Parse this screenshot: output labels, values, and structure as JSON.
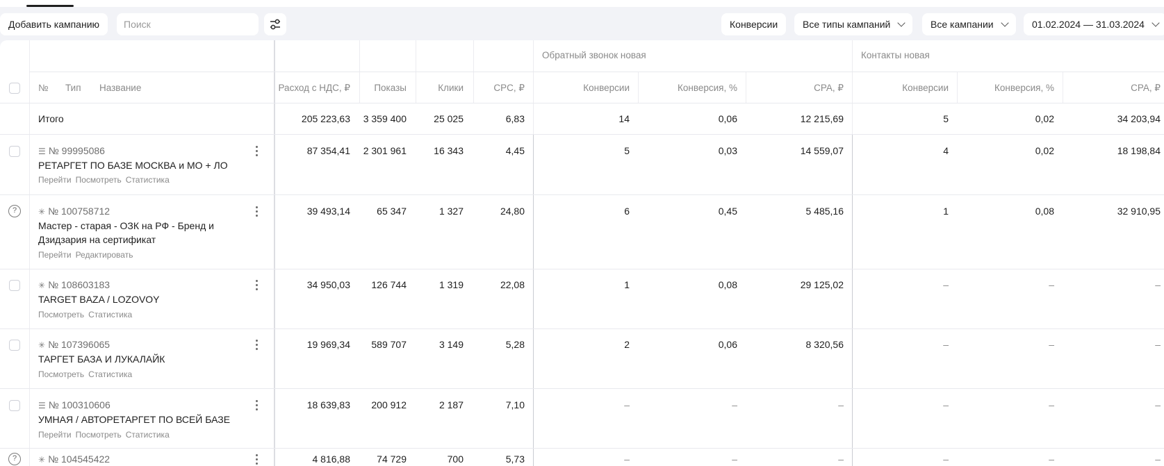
{
  "toolbar": {
    "add_campaign": "Добавить кампанию",
    "search_placeholder": "Поиск",
    "conversions": "Конверсии",
    "campaign_types": "Все типы кампаний",
    "campaigns": "Все кампании",
    "date_range": "01.02.2024 — 31.03.2024"
  },
  "groups": {
    "callback": "Обратный звонок новая",
    "contacts": "Контакты новая"
  },
  "headers": {
    "no": "№",
    "type": "Тип",
    "name": "Название",
    "spend": "Расход с НДС, ₽",
    "impressions": "Показы",
    "clicks": "Клики",
    "cpc": "CPC, ₽",
    "conv1": "Конверсии",
    "convrate1": "Конверсия, %",
    "cpa1": "CPA, ₽",
    "conv2": "Конверсии",
    "convrate2": "Конверсия, %",
    "cpa2": "CPA, ₽"
  },
  "total": {
    "label": "Итого",
    "spend": "205 223,63",
    "impressions": "3 359 400",
    "clicks": "25 025",
    "cpc": "6,83",
    "conv1": "14",
    "convrate1": "0,06",
    "cpa1": "12 215,69",
    "conv2": "5",
    "convrate2": "0,02",
    "cpa2": "34 203,94"
  },
  "rows": [
    {
      "type_icon": "text-ad-icon",
      "id": "№ 99995086",
      "name1": "РЕТАРГЕТ ПО БАЗЕ МОСКВА и МО + ЛО",
      "name2": "",
      "links": [
        "Перейти",
        "Посмотреть",
        "Статистика"
      ],
      "spend": "87 354,41",
      "impressions": "2 301 961",
      "clicks": "16 343",
      "cpc": "4,45",
      "conv1": "5",
      "convrate1": "0,03",
      "cpa1": "14 559,07",
      "conv2": "4",
      "convrate2": "0,02",
      "cpa2": "18 198,84"
    },
    {
      "type_icon": "master-icon",
      "id": "№ 100758712",
      "name1": "Мастер - старая - ОЗК на РФ - Бренд и",
      "name2": "Дзидзария на сертификат",
      "links": [
        "Перейти",
        "Редактировать"
      ],
      "spend": "39 493,14",
      "impressions": "65 347",
      "clicks": "1 327",
      "cpc": "24,80",
      "conv1": "6",
      "convrate1": "0,45",
      "cpa1": "5 485,16",
      "conv2": "1",
      "convrate2": "0,08",
      "cpa2": "32 910,95"
    },
    {
      "type_icon": "master-icon",
      "id": "№ 108603183",
      "name1": "TARGET BAZA / LOZOVOY",
      "name2": "",
      "links": [
        "Посмотреть",
        "Статистика"
      ],
      "spend": "34 950,03",
      "impressions": "126 744",
      "clicks": "1 319",
      "cpc": "22,08",
      "conv1": "1",
      "convrate1": "0,08",
      "cpa1": "29 125,02",
      "conv2": "–",
      "convrate2": "–",
      "cpa2": "–"
    },
    {
      "type_icon": "master-icon",
      "id": "№ 107396065",
      "name1": "ТАРГЕТ БАЗА И ЛУКАЛАЙК",
      "name2": "",
      "links": [
        "Посмотреть",
        "Статистика"
      ],
      "spend": "19 969,34",
      "impressions": "589 707",
      "clicks": "3 149",
      "cpc": "5,28",
      "conv1": "2",
      "convrate1": "0,06",
      "cpa1": "8 320,56",
      "conv2": "–",
      "convrate2": "–",
      "cpa2": "–"
    },
    {
      "type_icon": "text-ad-icon",
      "id": "№ 100310606",
      "name1": "УМНАЯ / АВТОРЕТАРГЕТ ПО ВСЕЙ БАЗЕ",
      "name2": "",
      "links": [
        "Перейти",
        "Посмотреть",
        "Статистика"
      ],
      "spend": "18 639,83",
      "impressions": "200 912",
      "clicks": "2 187",
      "cpc": "7,10",
      "conv1": "–",
      "convrate1": "–",
      "cpa1": "–",
      "conv2": "–",
      "convrate2": "–",
      "cpa2": "–"
    },
    {
      "type_icon": "master-icon",
      "id": "№ 104545422",
      "name1": "",
      "name2": "",
      "links": [],
      "spend": "4 816,88",
      "impressions": "74 729",
      "clicks": "700",
      "cpc": "5,73",
      "conv1": "–",
      "convrate1": "–",
      "cpa1": "–",
      "conv2": "–",
      "convrate2": "–",
      "cpa2": "–"
    }
  ]
}
